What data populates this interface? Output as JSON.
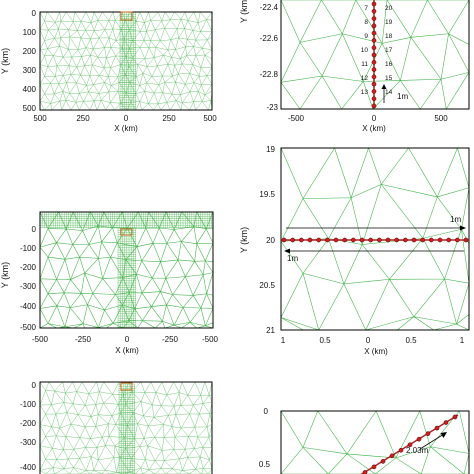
{
  "colors": {
    "mesh": "#3cb043",
    "fault": "#b22222",
    "node": "#d81b1b",
    "box": "#d2691e",
    "axis": "#000000"
  },
  "panels": [
    {
      "id": "a-left",
      "ylabel": "Y (km)",
      "xlabel": "X (km)",
      "yticks": [
        "0",
        "100",
        "200",
        "300",
        "400",
        "500"
      ],
      "xticks": [
        "500",
        "250",
        "0",
        "250",
        "500"
      ]
    },
    {
      "id": "a-right",
      "ylabel": "Y (km)",
      "xlabel": "X (km)",
      "yticks": [
        "-22.4",
        "-22.6",
        "-22.8",
        "-23"
      ],
      "xticks": [
        "-500",
        "0",
        "500"
      ],
      "node_labels_left": [
        "7",
        "8",
        "9",
        "10",
        "11",
        "12",
        "13"
      ],
      "node_labels_right": [
        "20",
        "19",
        "18",
        "17",
        "16",
        "15",
        "14"
      ],
      "scale_label": "1m"
    },
    {
      "id": "b-left",
      "ylabel": "Y (km)",
      "xlabel": "X (km)",
      "yticks": [
        "0",
        "-100",
        "-200",
        "-300",
        "-400",
        "-500"
      ],
      "xticks": [
        "-500",
        "-250",
        "0",
        "-250",
        "-500"
      ]
    },
    {
      "id": "b-right",
      "ylabel": "Y (km)",
      "xlabel": "X (km)",
      "yticks": [
        "19",
        "19.5",
        "20",
        "20.5",
        "21"
      ],
      "xticks": [
        "1",
        "0.5",
        "0",
        "0.5",
        "1"
      ],
      "scale_top": "1m",
      "scale_bottom": "1m"
    },
    {
      "id": "c-left",
      "ylabel": "",
      "xlabel": "",
      "yticks": [
        "0",
        "-100",
        "-200",
        "-300",
        "-400"
      ],
      "xticks": []
    },
    {
      "id": "c-right",
      "ylabel": "",
      "xlabel": "",
      "yticks": [
        "0",
        "0.5"
      ],
      "xticks": [],
      "scale_label": "2.03m"
    }
  ]
}
